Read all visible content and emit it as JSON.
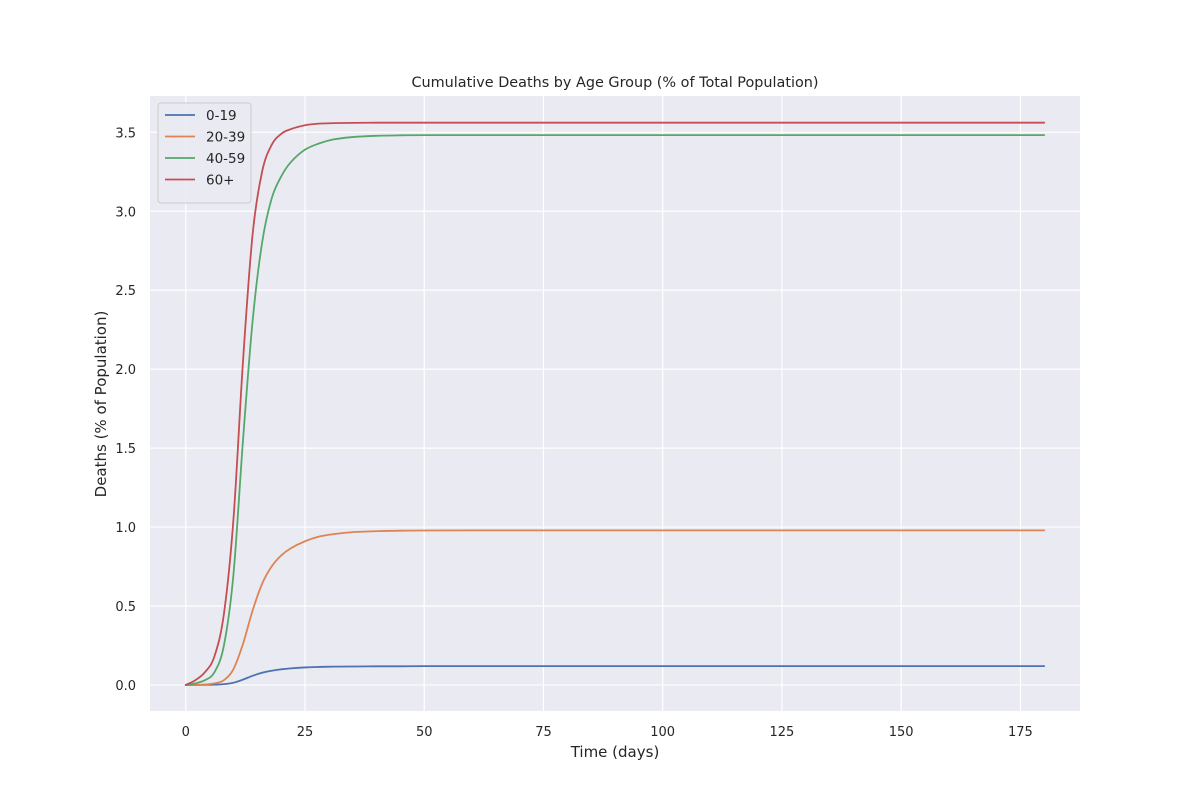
{
  "chart_data": {
    "type": "line",
    "title": "Cumulative Deaths by Age Group (% of Total Population)",
    "xlabel": "Time (days)",
    "ylabel": "Deaths (% of Population)",
    "xlim": [
      -7.5,
      187.5
    ],
    "ylim": [
      -0.165,
      3.73
    ],
    "xticks": [
      0,
      25,
      50,
      75,
      100,
      125,
      150,
      175
    ],
    "yticks": [
      0.0,
      0.5,
      1.0,
      1.5,
      2.0,
      2.5,
      3.0,
      3.5
    ],
    "xtick_labels": [
      "0",
      "25",
      "50",
      "75",
      "100",
      "125",
      "150",
      "175"
    ],
    "ytick_labels": [
      "0.0",
      "0.5",
      "1.0",
      "1.5",
      "2.0",
      "2.5",
      "3.0",
      "3.5"
    ],
    "grid": true,
    "legend_position": "top-left",
    "x": [
      0,
      2,
      4,
      6,
      8,
      10,
      12,
      14,
      16,
      18,
      20,
      22,
      25,
      28,
      31,
      35,
      40,
      45,
      50,
      60,
      75,
      100,
      125,
      150,
      180
    ],
    "series": [
      {
        "name": "0-19",
        "color": "#4c72b0",
        "values": [
          0.0,
          0.0,
          0.001,
          0.002,
          0.005,
          0.014,
          0.034,
          0.058,
          0.077,
          0.09,
          0.099,
          0.105,
          0.111,
          0.114,
          0.116,
          0.117,
          0.118,
          0.118,
          0.119,
          0.119,
          0.119,
          0.119,
          0.119,
          0.119,
          0.119
        ]
      },
      {
        "name": "20-39",
        "color": "#dd8452",
        "values": [
          0.0,
          0.0,
          0.003,
          0.01,
          0.03,
          0.1,
          0.26,
          0.47,
          0.64,
          0.75,
          0.82,
          0.865,
          0.91,
          0.94,
          0.955,
          0.968,
          0.974,
          0.977,
          0.978,
          0.979,
          0.979,
          0.979,
          0.979,
          0.979,
          0.979
        ]
      },
      {
        "name": "40-59",
        "color": "#55a868",
        "values": [
          0.0,
          0.01,
          0.03,
          0.08,
          0.25,
          0.7,
          1.55,
          2.3,
          2.8,
          3.08,
          3.22,
          3.31,
          3.39,
          3.43,
          3.455,
          3.47,
          3.478,
          3.481,
          3.482,
          3.482,
          3.482,
          3.482,
          3.482,
          3.482,
          3.482
        ]
      },
      {
        "name": "60+",
        "color": "#c44e52",
        "values": [
          0.0,
          0.03,
          0.08,
          0.18,
          0.45,
          1.05,
          2.05,
          2.85,
          3.25,
          3.42,
          3.49,
          3.52,
          3.545,
          3.555,
          3.558,
          3.56,
          3.561,
          3.561,
          3.561,
          3.561,
          3.561,
          3.561,
          3.561,
          3.561,
          3.561
        ]
      }
    ]
  }
}
